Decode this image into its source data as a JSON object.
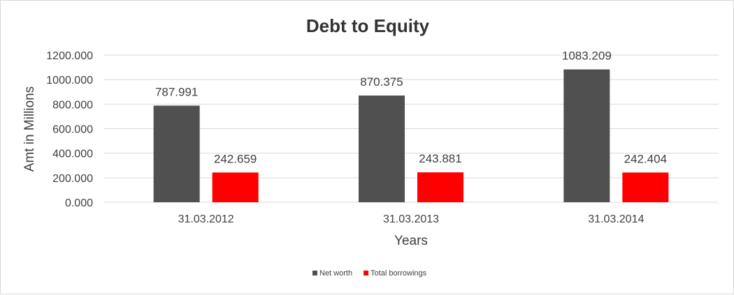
{
  "chart_data": {
    "type": "bar",
    "title": "Debt to Equity",
    "xlabel": "Years",
    "ylabel": "Amt in Millions",
    "categories": [
      "31.03.2012",
      "31.03.2013",
      "31.03.2014"
    ],
    "series": [
      {
        "name": "Net worth",
        "values": [
          787.991,
          870.375,
          1083.209
        ],
        "color": "#505050"
      },
      {
        "name": "Total borrowings",
        "values": [
          242.659,
          243.881,
          242.404
        ],
        "color": "#ff0000"
      }
    ],
    "data_labels": [
      [
        "787.991",
        "870.375",
        "1083.209"
      ],
      [
        "242.659",
        "243.881",
        "242.404"
      ]
    ],
    "ylim": [
      0,
      1200
    ],
    "yticks": [
      0,
      200,
      400,
      600,
      800,
      1000,
      1200
    ],
    "ytick_labels": [
      "0.000",
      "200.000",
      "400.000",
      "600.000",
      "800.000",
      "1000.000",
      "1200.000"
    ],
    "grid": true,
    "legend_position": "bottom"
  }
}
